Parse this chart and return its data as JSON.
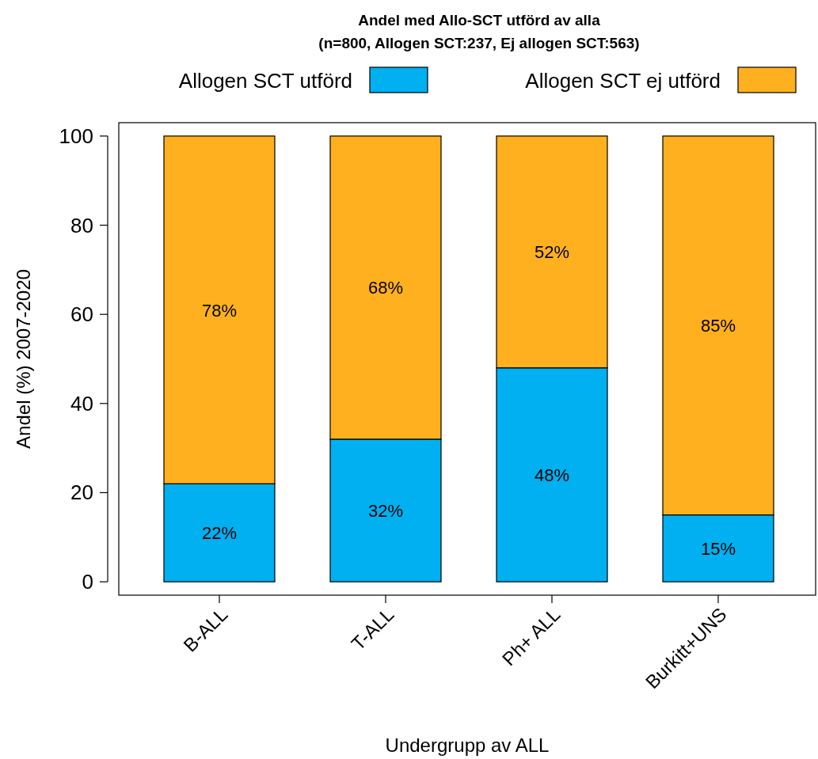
{
  "chart_data": {
    "type": "bar",
    "title": "Andel med Allo-SCT utförd av alla",
    "subtitle": "(n=800, Allogen SCT:237, Ej allogen SCT:563)",
    "xlabel": "Undergrupp av ALL",
    "ylabel": "Andel (%) 2007-2020",
    "categories": [
      "B-ALL",
      "T-ALL",
      "Ph+ ALL",
      "Burkitt+UNS"
    ],
    "stacked": true,
    "series": [
      {
        "name": "Allogen SCT utförd",
        "color": "#00b0f0",
        "values": [
          22,
          32,
          48,
          15
        ],
        "value_labels": [
          "22%",
          "32%",
          "48%",
          "15%"
        ]
      },
      {
        "name": "Allogen SCT ej utförd",
        "color": "#ffb01e",
        "values": [
          78,
          68,
          52,
          85
        ],
        "value_labels": [
          "78%",
          "68%",
          "52%",
          "85%"
        ]
      }
    ],
    "ylim": [
      -3,
      103
    ],
    "yticks": [
      0,
      20,
      40,
      60,
      80,
      100
    ],
    "grid": false,
    "legend": "top"
  }
}
